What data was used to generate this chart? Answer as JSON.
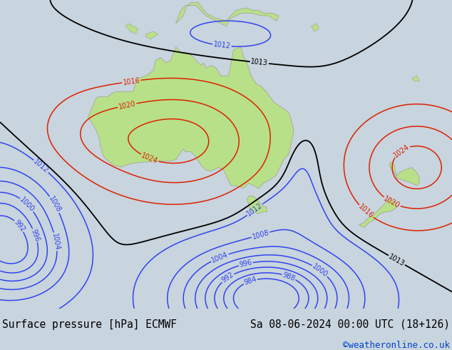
{
  "title_left": "Surface pressure [hPa] ECMWF",
  "title_right": "Sa 08-06-2024 00:00 UTC (18+126)",
  "credit": "©weatheronline.co.uk",
  "bg_color": "#c8d4de",
  "land_color": "#b8e088",
  "water_color": "#c8d4de",
  "isobar_blue": "#3344ee",
  "isobar_black": "#000000",
  "isobar_red": "#dd2200",
  "bottom_bar_color": "#d8d8d8",
  "title_fontsize": 10.5,
  "credit_fontsize": 9,
  "credit_color": "#0044cc",
  "lon_min": 95,
  "lon_max": 185,
  "lat_min": -62,
  "lat_max": -3
}
